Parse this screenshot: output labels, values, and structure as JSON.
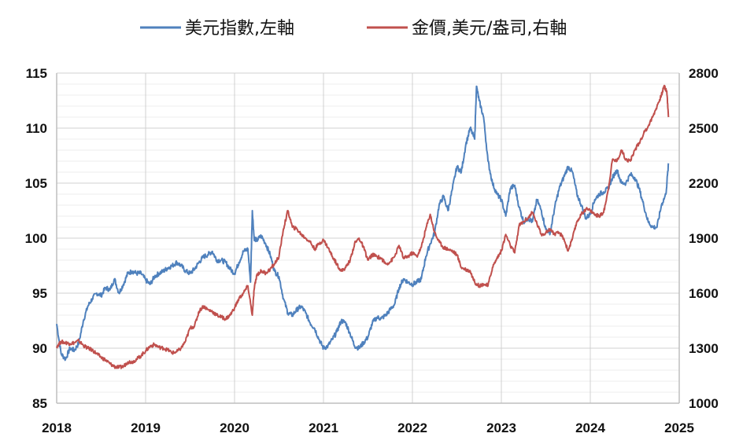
{
  "colors": {
    "dxy": "#4f81bd",
    "gold": "#c0504d",
    "grid_major": "#d0d0d0",
    "grid_minor": "#ececec",
    "axis": "#bfbfbf"
  },
  "chart_data": {
    "type": "line",
    "grid": true,
    "legend_position": "top-center",
    "x": {
      "min": 2018,
      "max": 2025,
      "ticks": [
        "2018",
        "2019",
        "2020",
        "2021",
        "2022",
        "2023",
        "2024",
        "2025"
      ]
    },
    "y_left": {
      "min": 85,
      "max": 115,
      "ticks": [
        "85",
        "90",
        "95",
        "100",
        "105",
        "110",
        "115"
      ]
    },
    "y_right": {
      "min": 1000,
      "max": 2800,
      "ticks": [
        "1000",
        "1300",
        "1600",
        "1900",
        "2200",
        "2500",
        "2800"
      ]
    },
    "series": [
      {
        "name": "美元指數,左軸",
        "axis": "left",
        "color": "#4f81bd",
        "points": [
          [
            2018.0,
            92.2
          ],
          [
            2018.05,
            89.5
          ],
          [
            2018.1,
            89.0
          ],
          [
            2018.15,
            90.0
          ],
          [
            2018.2,
            89.8
          ],
          [
            2018.25,
            90.5
          ],
          [
            2018.3,
            92.5
          ],
          [
            2018.35,
            93.8
          ],
          [
            2018.4,
            94.5
          ],
          [
            2018.45,
            95.0
          ],
          [
            2018.5,
            94.8
          ],
          [
            2018.55,
            95.5
          ],
          [
            2018.6,
            95.3
          ],
          [
            2018.65,
            96.3
          ],
          [
            2018.7,
            95.0
          ],
          [
            2018.75,
            95.8
          ],
          [
            2018.8,
            96.8
          ],
          [
            2018.85,
            97.0
          ],
          [
            2018.9,
            96.8
          ],
          [
            2018.95,
            96.8
          ],
          [
            2019.0,
            96.2
          ],
          [
            2019.05,
            95.8
          ],
          [
            2019.1,
            96.5
          ],
          [
            2019.15,
            96.8
          ],
          [
            2019.2,
            97.0
          ],
          [
            2019.25,
            97.3
          ],
          [
            2019.3,
            97.5
          ],
          [
            2019.35,
            97.8
          ],
          [
            2019.4,
            97.5
          ],
          [
            2019.45,
            97.0
          ],
          [
            2019.5,
            96.8
          ],
          [
            2019.55,
            97.2
          ],
          [
            2019.6,
            97.8
          ],
          [
            2019.65,
            98.3
          ],
          [
            2019.7,
            98.5
          ],
          [
            2019.75,
            98.8
          ],
          [
            2019.8,
            98.0
          ],
          [
            2019.85,
            98.0
          ],
          [
            2019.9,
            97.8
          ],
          [
            2019.95,
            97.2
          ],
          [
            2020.0,
            96.8
          ],
          [
            2020.05,
            97.8
          ],
          [
            2020.1,
            98.8
          ],
          [
            2020.15,
            99.0
          ],
          [
            2020.18,
            96.0
          ],
          [
            2020.2,
            102.5
          ],
          [
            2020.22,
            100.0
          ],
          [
            2020.25,
            99.8
          ],
          [
            2020.3,
            100.2
          ],
          [
            2020.35,
            99.5
          ],
          [
            2020.4,
            98.5
          ],
          [
            2020.45,
            97.0
          ],
          [
            2020.5,
            96.5
          ],
          [
            2020.55,
            94.5
          ],
          [
            2020.6,
            93.2
          ],
          [
            2020.65,
            93.0
          ],
          [
            2020.7,
            93.5
          ],
          [
            2020.75,
            93.8
          ],
          [
            2020.8,
            93.2
          ],
          [
            2020.85,
            92.3
          ],
          [
            2020.9,
            91.8
          ],
          [
            2020.95,
            90.8
          ],
          [
            2021.0,
            90.0
          ],
          [
            2021.05,
            90.2
          ],
          [
            2021.1,
            90.8
          ],
          [
            2021.15,
            91.5
          ],
          [
            2021.2,
            92.5
          ],
          [
            2021.25,
            92.3
          ],
          [
            2021.3,
            91.3
          ],
          [
            2021.35,
            90.2
          ],
          [
            2021.4,
            90.0
          ],
          [
            2021.45,
            90.5
          ],
          [
            2021.5,
            91.0
          ],
          [
            2021.55,
            92.3
          ],
          [
            2021.6,
            92.8
          ],
          [
            2021.65,
            92.7
          ],
          [
            2021.7,
            93.0
          ],
          [
            2021.75,
            93.5
          ],
          [
            2021.8,
            94.0
          ],
          [
            2021.85,
            95.5
          ],
          [
            2021.9,
            96.3
          ],
          [
            2021.95,
            96.0
          ],
          [
            2022.0,
            95.8
          ],
          [
            2022.05,
            96.0
          ],
          [
            2022.1,
            96.3
          ],
          [
            2022.15,
            98.3
          ],
          [
            2022.2,
            99.5
          ],
          [
            2022.25,
            100.5
          ],
          [
            2022.3,
            103.0
          ],
          [
            2022.35,
            103.8
          ],
          [
            2022.4,
            102.5
          ],
          [
            2022.45,
            104.5
          ],
          [
            2022.5,
            106.5
          ],
          [
            2022.55,
            106.0
          ],
          [
            2022.6,
            108.5
          ],
          [
            2022.65,
            110.0
          ],
          [
            2022.7,
            109.0
          ],
          [
            2022.72,
            113.8
          ],
          [
            2022.75,
            112.5
          ],
          [
            2022.8,
            111.0
          ],
          [
            2022.85,
            107.0
          ],
          [
            2022.9,
            105.0
          ],
          [
            2022.95,
            104.0
          ],
          [
            2023.0,
            103.5
          ],
          [
            2023.05,
            102.0
          ],
          [
            2023.1,
            104.5
          ],
          [
            2023.15,
            104.8
          ],
          [
            2023.2,
            102.8
          ],
          [
            2023.25,
            101.5
          ],
          [
            2023.3,
            101.8
          ],
          [
            2023.35,
            101.5
          ],
          [
            2023.4,
            103.5
          ],
          [
            2023.45,
            102.5
          ],
          [
            2023.5,
            100.8
          ],
          [
            2023.55,
            100.5
          ],
          [
            2023.6,
            102.8
          ],
          [
            2023.65,
            104.5
          ],
          [
            2023.7,
            105.5
          ],
          [
            2023.75,
            106.5
          ],
          [
            2023.8,
            106.0
          ],
          [
            2023.85,
            104.0
          ],
          [
            2023.9,
            103.0
          ],
          [
            2023.95,
            101.8
          ],
          [
            2024.0,
            102.2
          ],
          [
            2024.05,
            103.5
          ],
          [
            2024.1,
            104.0
          ],
          [
            2024.15,
            104.2
          ],
          [
            2024.2,
            104.5
          ],
          [
            2024.25,
            105.5
          ],
          [
            2024.3,
            106.2
          ],
          [
            2024.35,
            105.0
          ],
          [
            2024.4,
            105.0
          ],
          [
            2024.45,
            105.8
          ],
          [
            2024.5,
            105.5
          ],
          [
            2024.55,
            104.5
          ],
          [
            2024.6,
            103.0
          ],
          [
            2024.65,
            101.5
          ],
          [
            2024.7,
            101.0
          ],
          [
            2024.75,
            101.0
          ],
          [
            2024.8,
            103.0
          ],
          [
            2024.85,
            104.0
          ],
          [
            2024.88,
            106.8
          ]
        ]
      },
      {
        "name": "金價,美元/盎司,右軸",
        "axis": "right",
        "color": "#c0504d",
        "points": [
          [
            2018.0,
            1310
          ],
          [
            2018.05,
            1335
          ],
          [
            2018.1,
            1330
          ],
          [
            2018.15,
            1325
          ],
          [
            2018.2,
            1330
          ],
          [
            2018.25,
            1340
          ],
          [
            2018.3,
            1315
          ],
          [
            2018.35,
            1300
          ],
          [
            2018.4,
            1290
          ],
          [
            2018.45,
            1270
          ],
          [
            2018.5,
            1250
          ],
          [
            2018.55,
            1235
          ],
          [
            2018.6,
            1215
          ],
          [
            2018.65,
            1200
          ],
          [
            2018.7,
            1195
          ],
          [
            2018.75,
            1200
          ],
          [
            2018.8,
            1225
          ],
          [
            2018.85,
            1225
          ],
          [
            2018.9,
            1240
          ],
          [
            2018.95,
            1260
          ],
          [
            2019.0,
            1285
          ],
          [
            2019.05,
            1310
          ],
          [
            2019.1,
            1320
          ],
          [
            2019.15,
            1305
          ],
          [
            2019.2,
            1300
          ],
          [
            2019.25,
            1290
          ],
          [
            2019.3,
            1275
          ],
          [
            2019.35,
            1280
          ],
          [
            2019.4,
            1300
          ],
          [
            2019.45,
            1340
          ],
          [
            2019.5,
            1410
          ],
          [
            2019.55,
            1420
          ],
          [
            2019.6,
            1500
          ],
          [
            2019.65,
            1530
          ],
          [
            2019.7,
            1510
          ],
          [
            2019.75,
            1500
          ],
          [
            2019.8,
            1480
          ],
          [
            2019.85,
            1470
          ],
          [
            2019.9,
            1460
          ],
          [
            2019.95,
            1480
          ],
          [
            2020.0,
            1520
          ],
          [
            2020.05,
            1570
          ],
          [
            2020.1,
            1600
          ],
          [
            2020.15,
            1640
          ],
          [
            2020.2,
            1480
          ],
          [
            2020.22,
            1620
          ],
          [
            2020.25,
            1700
          ],
          [
            2020.3,
            1720
          ],
          [
            2020.35,
            1710
          ],
          [
            2020.4,
            1730
          ],
          [
            2020.45,
            1760
          ],
          [
            2020.5,
            1800
          ],
          [
            2020.55,
            1950
          ],
          [
            2020.6,
            2050
          ],
          [
            2020.65,
            1960
          ],
          [
            2020.7,
            1950
          ],
          [
            2020.75,
            1920
          ],
          [
            2020.8,
            1900
          ],
          [
            2020.85,
            1880
          ],
          [
            2020.9,
            1840
          ],
          [
            2020.95,
            1870
          ],
          [
            2021.0,
            1890
          ],
          [
            2021.05,
            1850
          ],
          [
            2021.1,
            1800
          ],
          [
            2021.15,
            1760
          ],
          [
            2021.2,
            1720
          ],
          [
            2021.25,
            1740
          ],
          [
            2021.3,
            1780
          ],
          [
            2021.35,
            1870
          ],
          [
            2021.4,
            1900
          ],
          [
            2021.45,
            1850
          ],
          [
            2021.5,
            1780
          ],
          [
            2021.55,
            1810
          ],
          [
            2021.6,
            1800
          ],
          [
            2021.65,
            1790
          ],
          [
            2021.7,
            1760
          ],
          [
            2021.75,
            1770
          ],
          [
            2021.8,
            1800
          ],
          [
            2021.85,
            1860
          ],
          [
            2021.9,
            1790
          ],
          [
            2021.95,
            1800
          ],
          [
            2022.0,
            1820
          ],
          [
            2022.05,
            1800
          ],
          [
            2022.1,
            1850
          ],
          [
            2022.15,
            1950
          ],
          [
            2022.2,
            2030
          ],
          [
            2022.25,
            1930
          ],
          [
            2022.3,
            1880
          ],
          [
            2022.35,
            1850
          ],
          [
            2022.4,
            1840
          ],
          [
            2022.45,
            1830
          ],
          [
            2022.5,
            1810
          ],
          [
            2022.55,
            1740
          ],
          [
            2022.6,
            1730
          ],
          [
            2022.65,
            1720
          ],
          [
            2022.7,
            1660
          ],
          [
            2022.75,
            1640
          ],
          [
            2022.8,
            1650
          ],
          [
            2022.85,
            1640
          ],
          [
            2022.9,
            1740
          ],
          [
            2022.95,
            1790
          ],
          [
            2023.0,
            1830
          ],
          [
            2023.05,
            1920
          ],
          [
            2023.1,
            1860
          ],
          [
            2023.15,
            1820
          ],
          [
            2023.2,
            1970
          ],
          [
            2023.25,
            1990
          ],
          [
            2023.3,
            2010
          ],
          [
            2023.35,
            2040
          ],
          [
            2023.4,
            1980
          ],
          [
            2023.45,
            1920
          ],
          [
            2023.5,
            1930
          ],
          [
            2023.55,
            1950
          ],
          [
            2023.6,
            1920
          ],
          [
            2023.65,
            1930
          ],
          [
            2023.7,
            1900
          ],
          [
            2023.75,
            1830
          ],
          [
            2023.8,
            1900
          ],
          [
            2023.85,
            1990
          ],
          [
            2023.9,
            2030
          ],
          [
            2023.95,
            2060
          ],
          [
            2024.0,
            2050
          ],
          [
            2024.05,
            2030
          ],
          [
            2024.1,
            2020
          ],
          [
            2024.15,
            2040
          ],
          [
            2024.2,
            2160
          ],
          [
            2024.25,
            2330
          ],
          [
            2024.3,
            2320
          ],
          [
            2024.35,
            2380
          ],
          [
            2024.4,
            2330
          ],
          [
            2024.45,
            2320
          ],
          [
            2024.5,
            2380
          ],
          [
            2024.55,
            2420
          ],
          [
            2024.6,
            2470
          ],
          [
            2024.65,
            2510
          ],
          [
            2024.7,
            2560
          ],
          [
            2024.75,
            2620
          ],
          [
            2024.8,
            2680
          ],
          [
            2024.83,
            2730
          ],
          [
            2024.86,
            2700
          ],
          [
            2024.88,
            2560
          ]
        ]
      }
    ]
  }
}
